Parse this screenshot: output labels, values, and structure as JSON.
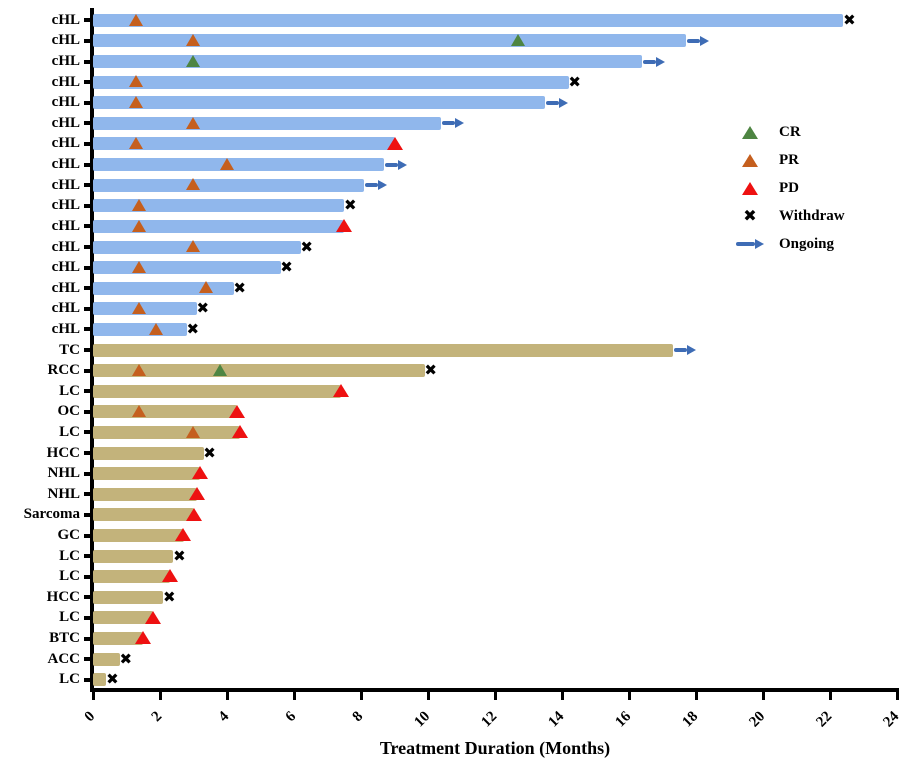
{
  "chart_data": {
    "type": "bar",
    "subtype": "swimmer-plot",
    "orientation": "horizontal",
    "title": "",
    "xlabel": "Treatment Duration (Months)",
    "ylabel": "",
    "xlim": [
      0,
      24
    ],
    "xticks": [
      0,
      2,
      4,
      6,
      8,
      10,
      12,
      14,
      16,
      18,
      20,
      22,
      24
    ],
    "grid": false,
    "legend_position": "right-upper",
    "bar_colors": {
      "cHL": "#90b7ec",
      "solid": "#c3b37b"
    },
    "marker_colors": {
      "CR": "#4e8542",
      "PR": "#c55f1e",
      "PD": "#ee1111",
      "Withdraw": "#000000",
      "Ongoing": "#3e6cb5"
    },
    "legend": [
      {
        "key": "CR",
        "label": "CR",
        "marker": "triangle",
        "color": "#4e8542"
      },
      {
        "key": "PR",
        "label": "PR",
        "marker": "triangle",
        "color": "#c55f1e"
      },
      {
        "key": "PD",
        "label": "PD",
        "marker": "triangle",
        "color": "#ee1111"
      },
      {
        "key": "Withdraw",
        "label": "Withdraw",
        "marker": "cross",
        "color": "#000000"
      },
      {
        "key": "Ongoing",
        "label": "Ongoing",
        "marker": "arrow",
        "color": "#3e6cb5"
      }
    ],
    "rows": [
      {
        "label": "cHL",
        "group": "cHL",
        "duration": 22.4,
        "end": "Withdraw",
        "markers": [
          {
            "type": "PR",
            "x": 1.3
          }
        ]
      },
      {
        "label": "cHL",
        "group": "cHL",
        "duration": 17.7,
        "end": "Ongoing",
        "markers": [
          {
            "type": "PR",
            "x": 3.0
          },
          {
            "type": "CR",
            "x": 12.7
          }
        ]
      },
      {
        "label": "cHL",
        "group": "cHL",
        "duration": 16.4,
        "end": "Ongoing",
        "markers": [
          {
            "type": "CR",
            "x": 3.0
          }
        ]
      },
      {
        "label": "cHL",
        "group": "cHL",
        "duration": 14.2,
        "end": "Withdraw",
        "markers": [
          {
            "type": "PR",
            "x": 1.3
          }
        ]
      },
      {
        "label": "cHL",
        "group": "cHL",
        "duration": 13.5,
        "end": "Ongoing",
        "markers": [
          {
            "type": "PR",
            "x": 1.3
          }
        ]
      },
      {
        "label": "cHL",
        "group": "cHL",
        "duration": 10.4,
        "end": "Ongoing",
        "markers": [
          {
            "type": "PR",
            "x": 3.0
          }
        ]
      },
      {
        "label": "cHL",
        "group": "cHL",
        "duration": 9.0,
        "end": "PD",
        "markers": [
          {
            "type": "PR",
            "x": 1.3
          }
        ]
      },
      {
        "label": "cHL",
        "group": "cHL",
        "duration": 8.7,
        "end": "Ongoing",
        "markers": [
          {
            "type": "PR",
            "x": 4.0
          }
        ]
      },
      {
        "label": "cHL",
        "group": "cHL",
        "duration": 8.1,
        "end": "Ongoing",
        "markers": [
          {
            "type": "PR",
            "x": 3.0
          }
        ]
      },
      {
        "label": "cHL",
        "group": "cHL",
        "duration": 7.5,
        "end": "Withdraw",
        "markers": [
          {
            "type": "PR",
            "x": 1.4
          }
        ]
      },
      {
        "label": "cHL",
        "group": "cHL",
        "duration": 7.5,
        "end": "PD",
        "markers": [
          {
            "type": "PR",
            "x": 1.4
          }
        ]
      },
      {
        "label": "cHL",
        "group": "cHL",
        "duration": 6.2,
        "end": "Withdraw",
        "markers": [
          {
            "type": "PR",
            "x": 3.0
          }
        ]
      },
      {
        "label": "cHL",
        "group": "cHL",
        "duration": 5.6,
        "end": "Withdraw",
        "markers": [
          {
            "type": "PR",
            "x": 1.4
          }
        ]
      },
      {
        "label": "cHL",
        "group": "cHL",
        "duration": 4.2,
        "end": "Withdraw",
        "markers": [
          {
            "type": "PR",
            "x": 3.4
          }
        ]
      },
      {
        "label": "cHL",
        "group": "cHL",
        "duration": 3.1,
        "end": "Withdraw",
        "markers": [
          {
            "type": "PR",
            "x": 1.4
          }
        ]
      },
      {
        "label": "cHL",
        "group": "cHL",
        "duration": 2.8,
        "end": "Withdraw",
        "markers": [
          {
            "type": "PR",
            "x": 1.9
          }
        ]
      },
      {
        "label": "TC",
        "group": "solid",
        "duration": 17.3,
        "end": "Ongoing",
        "markers": []
      },
      {
        "label": "RCC",
        "group": "solid",
        "duration": 9.9,
        "end": "Withdraw",
        "markers": [
          {
            "type": "PR",
            "x": 1.4
          },
          {
            "type": "CR",
            "x": 3.8
          }
        ]
      },
      {
        "label": "LC",
        "group": "solid",
        "duration": 7.4,
        "end": "PD",
        "markers": []
      },
      {
        "label": "OC",
        "group": "solid",
        "duration": 4.3,
        "end": "PD",
        "markers": [
          {
            "type": "PR",
            "x": 1.4
          }
        ]
      },
      {
        "label": "LC",
        "group": "solid",
        "duration": 4.4,
        "end": "PD",
        "markers": [
          {
            "type": "PR",
            "x": 3.0
          }
        ]
      },
      {
        "label": "HCC",
        "group": "solid",
        "duration": 3.3,
        "end": "Withdraw",
        "markers": []
      },
      {
        "label": "NHL",
        "group": "solid",
        "duration": 3.2,
        "end": "PD",
        "markers": []
      },
      {
        "label": "NHL",
        "group": "solid",
        "duration": 3.1,
        "end": "PD",
        "markers": []
      },
      {
        "label": "Sarcoma",
        "group": "solid",
        "duration": 3.0,
        "end": "PD",
        "markers": []
      },
      {
        "label": "GC",
        "group": "solid",
        "duration": 2.7,
        "end": "PD",
        "markers": []
      },
      {
        "label": "LC",
        "group": "solid",
        "duration": 2.4,
        "end": "Withdraw",
        "markers": []
      },
      {
        "label": "LC",
        "group": "solid",
        "duration": 2.3,
        "end": "PD",
        "markers": []
      },
      {
        "label": "HCC",
        "group": "solid",
        "duration": 2.1,
        "end": "Withdraw",
        "markers": []
      },
      {
        "label": "LC",
        "group": "solid",
        "duration": 1.8,
        "end": "PD",
        "markers": []
      },
      {
        "label": "BTC",
        "group": "solid",
        "duration": 1.5,
        "end": "PD",
        "markers": []
      },
      {
        "label": "ACC",
        "group": "solid",
        "duration": 0.8,
        "end": "Withdraw",
        "markers": []
      },
      {
        "label": "LC",
        "group": "solid",
        "duration": 0.4,
        "end": "Withdraw",
        "markers": []
      }
    ]
  }
}
